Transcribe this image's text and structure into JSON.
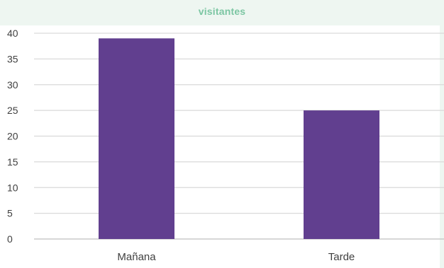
{
  "chart_data": {
    "type": "bar",
    "title": "visitantes",
    "categories": [
      "Mañana",
      "Tarde"
    ],
    "values": [
      39,
      25
    ],
    "ylim": [
      0,
      40
    ],
    "yticks": [
      0,
      5,
      10,
      15,
      20,
      25,
      30,
      35,
      40
    ],
    "grid": true,
    "legend": "none",
    "xlabel": "",
    "ylabel": "",
    "colors": {
      "bar": "#613f8f",
      "grid": "#d9d9d9",
      "axis": "#bfbfbf",
      "tick_text": "#404040",
      "title": "#7cc6a3",
      "background": "#eef6f1"
    }
  }
}
